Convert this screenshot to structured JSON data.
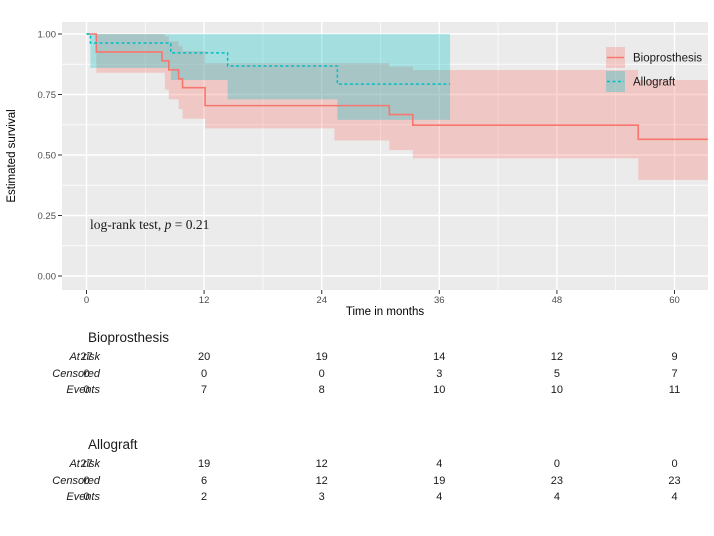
{
  "chart_data": {
    "type": "line",
    "subtype": "kaplan-meier-step",
    "title": "",
    "xlabel": "Time in months",
    "ylabel": "Estimated survival",
    "x_ticks": [
      0,
      12,
      24,
      36,
      48,
      60
    ],
    "x_minor_ticks": [
      6,
      18,
      30,
      42,
      54
    ],
    "y_ticks": [
      0.0,
      0.25,
      0.5,
      0.75,
      1.0
    ],
    "y_tick_labels": [
      "0.00",
      "0.25",
      "0.50",
      "0.75",
      "1.00"
    ],
    "y_minor_ticks": [
      0.125,
      0.375,
      0.625,
      0.875
    ],
    "xlim": [
      -2.5,
      63.4
    ],
    "ylim": [
      -0.058,
      1.05
    ],
    "grid": "on",
    "legend_position": "inside-top-right",
    "annotation": {
      "pre": "log-rank test, ",
      "p": "p",
      "post": " = 0.21",
      "at_x": 0.3,
      "at_y": 0.21
    },
    "series": [
      {
        "name": "Bioprosthesis",
        "color": "#F8766D",
        "band_color": "rgba(248,118,109,0.30)",
        "linetype": "solid",
        "steps": [
          [
            0,
            1.0
          ],
          [
            1.0,
            0.926
          ],
          [
            7.7,
            0.889
          ],
          [
            8.4,
            0.852
          ],
          [
            9.4,
            0.815
          ],
          [
            9.8,
            0.778
          ],
          [
            12.1,
            0.704
          ],
          [
            30.9,
            0.667
          ],
          [
            33.3,
            0.623
          ],
          [
            56.3,
            0.565
          ]
        ],
        "end_t": 63.4,
        "band": [
          [
            1.0,
            0.84,
            1.0
          ],
          [
            8.0,
            0.77,
            0.99
          ],
          [
            8.4,
            0.73,
            0.97
          ],
          [
            9.4,
            0.69,
            0.95
          ],
          [
            9.8,
            0.65,
            0.93
          ],
          [
            12.1,
            0.61,
            0.879
          ],
          [
            25.3,
            0.56,
            0.879
          ],
          [
            30.9,
            0.52,
            0.865
          ],
          [
            33.3,
            0.486,
            0.851
          ],
          [
            56.3,
            0.397,
            0.81
          ]
        ],
        "band_end_t": 63.4
      },
      {
        "name": "Allograft",
        "color": "#00BFC4",
        "band_color": "rgba(0,191,196,0.30)",
        "linetype": "dashed",
        "steps": [
          [
            0,
            1.0
          ],
          [
            0.4,
            0.963
          ],
          [
            8.6,
            0.922
          ],
          [
            14.4,
            0.868
          ],
          [
            25.6,
            0.793
          ]
        ],
        "end_t": 37.1,
        "band": [
          [
            0.4,
            0.86,
            1.0
          ],
          [
            8.6,
            0.81,
            1.0
          ],
          [
            14.4,
            0.73,
            1.0
          ],
          [
            25.6,
            0.645,
            1.0
          ]
        ],
        "band_end_t": 37.1
      }
    ]
  },
  "tables": [
    {
      "title": "Bioprosthesis",
      "rows": [
        {
          "label": "At risk",
          "values": [
            "27",
            "20",
            "19",
            "14",
            "12",
            "9"
          ]
        },
        {
          "label": "Censored",
          "values": [
            "0",
            "0",
            "0",
            "3",
            "5",
            "7"
          ]
        },
        {
          "label": "Events",
          "values": [
            "0",
            "7",
            "8",
            "10",
            "10",
            "11"
          ]
        }
      ]
    },
    {
      "title": "Allograft",
      "rows": [
        {
          "label": "At risk",
          "values": [
            "27",
            "19",
            "12",
            "4",
            "0",
            "0"
          ]
        },
        {
          "label": "Censored",
          "values": [
            "0",
            "6",
            "12",
            "19",
            "23",
            "23"
          ]
        },
        {
          "label": "Events",
          "values": [
            "0",
            "2",
            "3",
            "4",
            "4",
            "4"
          ]
        }
      ]
    }
  ],
  "colors": {
    "panel_bg": "#EBEBEB",
    "grid": "#FFFFFF",
    "tick_label": "#4D4D4D",
    "axis_title": "#000000",
    "tick_mark": "#333333",
    "text": "#1a1a1a"
  }
}
